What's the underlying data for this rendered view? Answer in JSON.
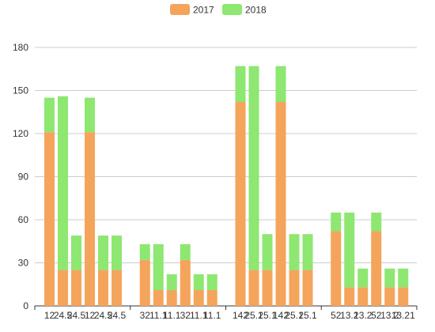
{
  "chart_data": {
    "type": "bar",
    "stacked": true,
    "legend": {
      "position": "top-center"
    },
    "grid": true,
    "ylim": [
      0,
      180
    ],
    "yticks": [
      0,
      30,
      60,
      90,
      120,
      150,
      180
    ],
    "categories": [
      "12",
      "24.5",
      "24.5",
      "12",
      "24.5",
      "24.5",
      "32",
      "11.1",
      "11.1",
      "32",
      "11.1",
      "11.1",
      "142",
      "25.1",
      "25.1",
      "142",
      "25.1",
      "25.1",
      "52",
      "13.2",
      "13.2",
      "52",
      "13.2",
      "13.21"
    ],
    "group_size": 6,
    "series": [
      {
        "name": "2017",
        "color": "#f5a45c",
        "values": [
          121,
          25,
          25,
          121,
          25,
          25,
          32,
          11,
          11,
          32,
          11,
          11,
          142,
          25,
          25,
          142,
          25,
          25,
          52,
          13,
          13,
          52,
          13,
          13
        ]
      },
      {
        "name": "2018",
        "color": "#8de771",
        "values": [
          24,
          121,
          24,
          24,
          24,
          24,
          11,
          32,
          11,
          11,
          11,
          11,
          25,
          142,
          25,
          25,
          25,
          25,
          13,
          52,
          13,
          13,
          13,
          13
        ]
      }
    ]
  }
}
